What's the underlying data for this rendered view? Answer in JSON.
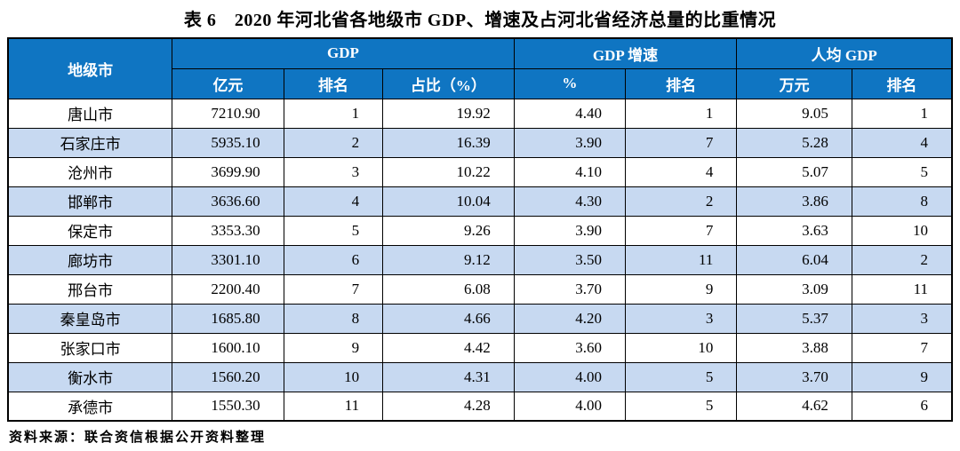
{
  "title": "表 6　2020 年河北省各地级市 GDP、增速及占河北省经济总量的比重情况",
  "colors": {
    "header_bg": "#0F75C2",
    "header_text": "#FFFFFF",
    "stripe_bg": "#C7D9F1",
    "border": "#000000"
  },
  "table": {
    "header": {
      "city_label": "地级市",
      "groups": [
        {
          "label": "GDP",
          "subs": [
            "亿元",
            "排名",
            "占比（%）"
          ]
        },
        {
          "label": "GDP 增速",
          "subs": [
            "%",
            "排名"
          ]
        },
        {
          "label": "人均 GDP",
          "subs": [
            "万元",
            "排名"
          ]
        }
      ]
    },
    "rows": [
      {
        "city": "唐山市",
        "gdp": "7210.90",
        "gdp_rank": "1",
        "share": "19.92",
        "growth": "4.40",
        "growth_rank": "1",
        "per_capita": "9.05",
        "pc_rank": "1"
      },
      {
        "city": "石家庄市",
        "gdp": "5935.10",
        "gdp_rank": "2",
        "share": "16.39",
        "growth": "3.90",
        "growth_rank": "7",
        "per_capita": "5.28",
        "pc_rank": "4"
      },
      {
        "city": "沧州市",
        "gdp": "3699.90",
        "gdp_rank": "3",
        "share": "10.22",
        "growth": "4.10",
        "growth_rank": "4",
        "per_capita": "5.07",
        "pc_rank": "5"
      },
      {
        "city": "邯郸市",
        "gdp": "3636.60",
        "gdp_rank": "4",
        "share": "10.04",
        "growth": "4.30",
        "growth_rank": "2",
        "per_capita": "3.86",
        "pc_rank": "8"
      },
      {
        "city": "保定市",
        "gdp": "3353.30",
        "gdp_rank": "5",
        "share": "9.26",
        "growth": "3.90",
        "growth_rank": "7",
        "per_capita": "3.63",
        "pc_rank": "10"
      },
      {
        "city": "廊坊市",
        "gdp": "3301.10",
        "gdp_rank": "6",
        "share": "9.12",
        "growth": "3.50",
        "growth_rank": "11",
        "per_capita": "6.04",
        "pc_rank": "2"
      },
      {
        "city": "邢台市",
        "gdp": "2200.40",
        "gdp_rank": "7",
        "share": "6.08",
        "growth": "3.70",
        "growth_rank": "9",
        "per_capita": "3.09",
        "pc_rank": "11"
      },
      {
        "city": "秦皇岛市",
        "gdp": "1685.80",
        "gdp_rank": "8",
        "share": "4.66",
        "growth": "4.20",
        "growth_rank": "3",
        "per_capita": "5.37",
        "pc_rank": "3"
      },
      {
        "city": "张家口市",
        "gdp": "1600.10",
        "gdp_rank": "9",
        "share": "4.42",
        "growth": "3.60",
        "growth_rank": "10",
        "per_capita": "3.88",
        "pc_rank": "7"
      },
      {
        "city": "衡水市",
        "gdp": "1560.20",
        "gdp_rank": "10",
        "share": "4.31",
        "growth": "4.00",
        "growth_rank": "5",
        "per_capita": "3.70",
        "pc_rank": "9"
      },
      {
        "city": "承德市",
        "gdp": "1550.30",
        "gdp_rank": "11",
        "share": "4.28",
        "growth": "4.00",
        "growth_rank": "5",
        "per_capita": "4.62",
        "pc_rank": "6"
      }
    ]
  },
  "footer": {
    "source": "资料来源：联合资信根据公开资料整理"
  }
}
